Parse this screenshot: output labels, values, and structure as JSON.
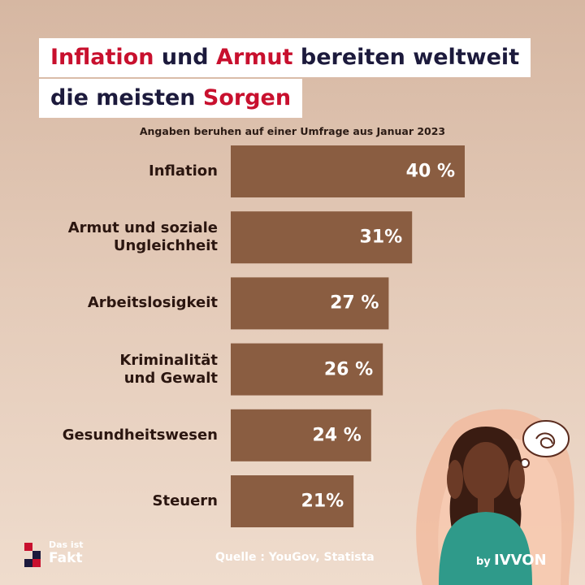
{
  "chart_data": {
    "type": "bar",
    "orientation": "horizontal",
    "title": [
      [
        {
          "text": "Inflation",
          "color": "#c8102e"
        },
        {
          "text": " und ",
          "color": "#1c1a3c"
        },
        {
          "text": "Armut",
          "color": "#c8102e"
        },
        {
          "text": " bereiten weltweit",
          "color": "#1c1a3c"
        }
      ],
      [
        {
          "text": "die meisten ",
          "color": "#1c1a3c"
        },
        {
          "text": "Sorgen",
          "color": "#c8102e"
        }
      ]
    ],
    "subtitle": "Angaben beruhen auf einer Umfrage aus Januar 2023",
    "categories": [
      "Inflation",
      "Armut und soziale\nUngleichheit",
      "Arbeitslosigkeit",
      "Kriminalität\nund Gewalt",
      "Gesundheitswesen",
      "Steuern"
    ],
    "values": [
      40,
      31,
      27,
      26,
      24,
      21
    ],
    "value_labels": [
      "40 %",
      "31%",
      "27 %",
      "26 %",
      "24 %",
      "21%"
    ],
    "color": "#8a5d41",
    "xlim": [
      0,
      40
    ],
    "source": "Quelle : YouGov, Statista",
    "logo": [
      "Das ist",
      "Fakt"
    ],
    "credit": [
      "by",
      "IVVON"
    ]
  }
}
